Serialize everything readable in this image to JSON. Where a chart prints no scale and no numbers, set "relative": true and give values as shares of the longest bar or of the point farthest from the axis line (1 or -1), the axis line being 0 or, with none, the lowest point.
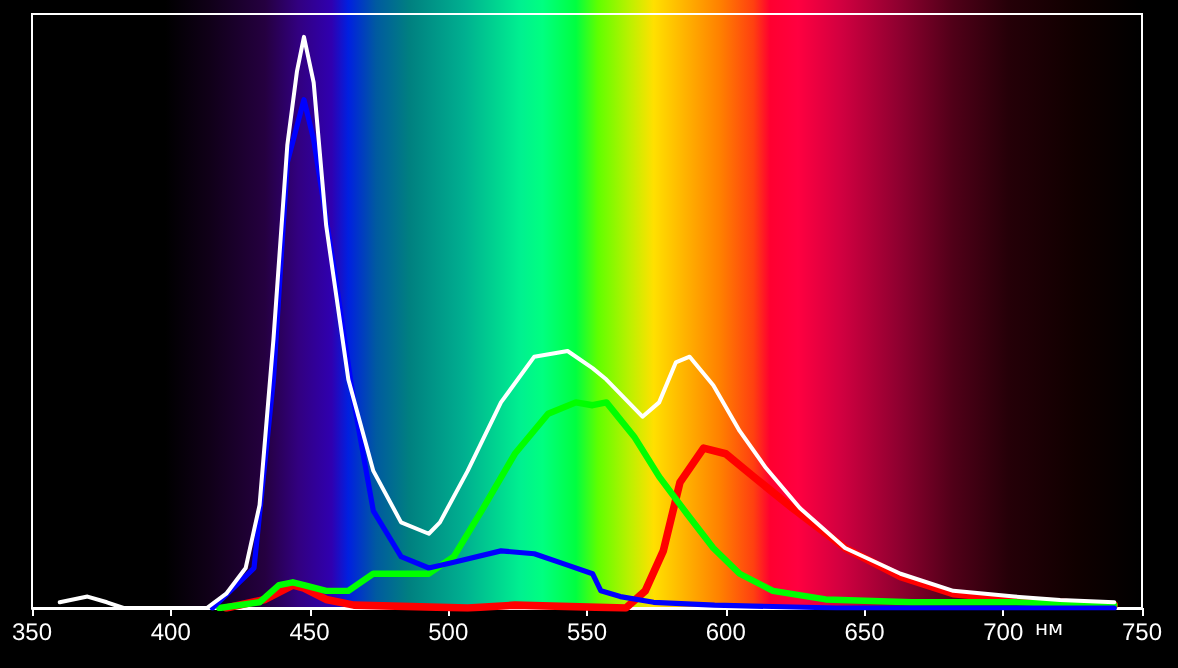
{
  "chart_data": {
    "type": "line",
    "relative": true,
    "xlabel": "нм",
    "xlim": [
      350,
      750
    ],
    "xticks": [
      350,
      400,
      450,
      500,
      550,
      600,
      650,
      700,
      750
    ],
    "grid": false,
    "marker": "none",
    "line_style": "solid",
    "series": [
      {
        "color": "#ffffff",
        "x": [
          360,
          370,
          377,
          383,
          413,
          420,
          427,
          432,
          437,
          442,
          445.5,
          448,
          451.5,
          456,
          464,
          473,
          483,
          493,
          497,
          507,
          519,
          531,
          543,
          552,
          557,
          570,
          576,
          582,
          587,
          595.5,
          605,
          614.5,
          626.7,
          643,
          663,
          682,
          704,
          720.5,
          740
        ],
        "values": [
          0.01,
          0.02,
          0.01,
          0,
          0,
          0.025,
          0.07,
          0.18,
          0.47,
          0.81,
          0.94,
          1,
          0.92,
          0.67,
          0.4,
          0.24,
          0.15,
          0.13,
          0.15,
          0.24,
          0.36,
          0.44,
          0.45,
          0.42,
          0.4,
          0.335,
          0.36,
          0.43,
          0.44,
          0.39,
          0.31,
          0.245,
          0.175,
          0.105,
          0.06,
          0.03,
          0.02,
          0.014,
          0.01
        ]
      },
      {
        "color": "#0000ff",
        "x": [
          415,
          430,
          437,
          442,
          448,
          451.5,
          459,
          466,
          473,
          483,
          493,
          502,
          519,
          531,
          543,
          552,
          555,
          562,
          574,
          596,
          640,
          740
        ],
        "values": [
          0,
          0.07,
          0.4,
          0.78,
          0.89,
          0.82,
          0.59,
          0.36,
          0.17,
          0.09,
          0.07,
          0.08,
          0.1,
          0.095,
          0.075,
          0.06,
          0.03,
          0.02,
          0.01,
          0.005,
          0,
          0
        ]
      },
      {
        "color": "#00ff00",
        "x": [
          417.5,
          432,
          439,
          444,
          448,
          456,
          464,
          473,
          483,
          493,
          502,
          512,
          524,
          536,
          546,
          552,
          557,
          567,
          576,
          586,
          595.5,
          605,
          617,
          636,
          667,
          704,
          740
        ],
        "values": [
          0,
          0.01,
          0.04,
          0.045,
          0.04,
          0.03,
          0.03,
          0.06,
          0.06,
          0.06,
          0.09,
          0.17,
          0.27,
          0.34,
          0.36,
          0.355,
          0.36,
          0.3,
          0.23,
          0.165,
          0.105,
          0.06,
          0.03,
          0.015,
          0.01,
          0.01,
          0.005
        ]
      },
      {
        "color": "#ff0000",
        "x": [
          420,
          434,
          444,
          448,
          456,
          466,
          507,
          524,
          564,
          571,
          577.5,
          583.5,
          592,
          600,
          610,
          624,
          643,
          663,
          682,
          704,
          720.5,
          740
        ],
        "values": [
          0,
          0.015,
          0.04,
          0.035,
          0.015,
          0.005,
          0,
          0.005,
          0,
          0.03,
          0.1,
          0.22,
          0.28,
          0.27,
          0.23,
          0.175,
          0.105,
          0.055,
          0.025,
          0.015,
          0.01,
          0.005
        ]
      }
    ]
  }
}
